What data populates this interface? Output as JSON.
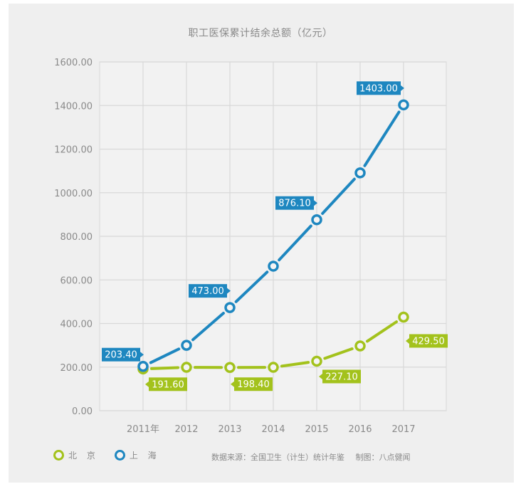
{
  "title": "职工医保累计结余总额（亿元）",
  "colors": {
    "beijing": "#a3c21c",
    "shanghai": "#1e87c0",
    "grid": "#d9d9d9",
    "axis_text": "#8a8a8a",
    "panel": "#efefef"
  },
  "legend": [
    {
      "label": "北 京",
      "color": "#a3c21c"
    },
    {
      "label": "上 海",
      "color": "#1e87c0"
    }
  ],
  "source": {
    "data_source": "数据来源：全国卫生（计生）统计年鉴",
    "made_by": "制图：八点健闻"
  },
  "chart_data": {
    "type": "line",
    "title": "职工医保累计结余总额（亿元）",
    "xlabel": "",
    "ylabel": "",
    "categories": [
      "2011年",
      "2012",
      "2013",
      "2014",
      "2015",
      "2016",
      "2017"
    ],
    "y_ticks": [
      "0.00",
      "200.00",
      "400.00",
      "600.00",
      "800.00",
      "1000.00",
      "1200.00",
      "1400.00",
      "1600.00"
    ],
    "ylim": [
      0,
      1600
    ],
    "grid": true,
    "legend_position": "bottom-left",
    "series": [
      {
        "name": "北京",
        "color": "#a3c21c",
        "values": [
          191.6,
          199,
          198.4,
          199,
          227.1,
          297,
          429.5
        ],
        "labels": [
          {
            "index": 0,
            "text": "191.60",
            "side": "below-right"
          },
          {
            "index": 2,
            "text": "198.40",
            "side": "below-left"
          },
          {
            "index": 4,
            "text": "227.10",
            "side": "below-right"
          },
          {
            "index": 6,
            "text": "429.50",
            "side": "below-right"
          }
        ]
      },
      {
        "name": "上海",
        "color": "#1e87c0",
        "values": [
          203.4,
          300,
          473.0,
          663,
          876.1,
          1091,
          1403.0
        ],
        "labels": [
          {
            "index": 0,
            "text": "203.40",
            "side": "above-left"
          },
          {
            "index": 2,
            "text": "473.00",
            "side": "above-left"
          },
          {
            "index": 4,
            "text": "876.10",
            "side": "above-left"
          },
          {
            "index": 6,
            "text": "1403.00",
            "side": "above-left"
          }
        ]
      }
    ]
  }
}
